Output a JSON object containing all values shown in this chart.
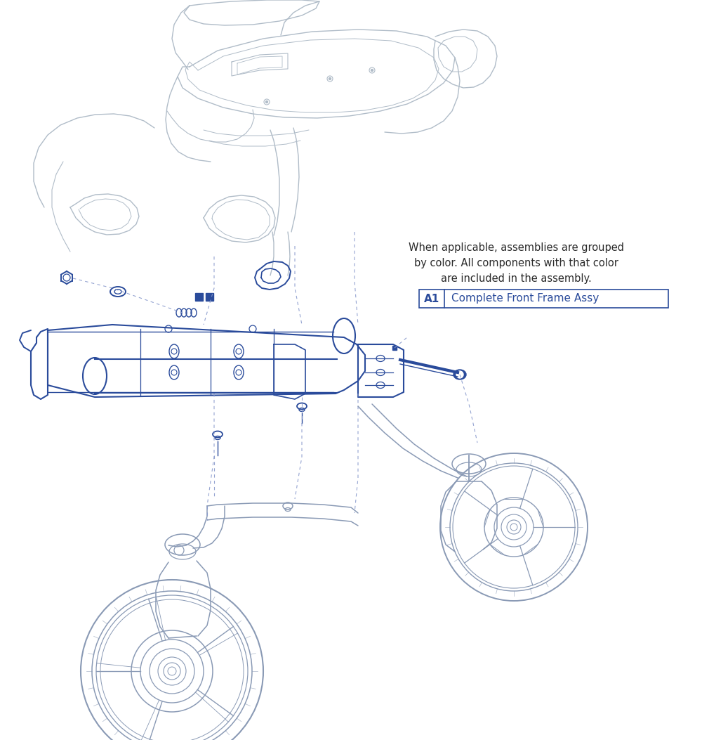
{
  "background_color": "#ffffff",
  "blue_color": "#2a4b9b",
  "gray_color": "#8a9ab0",
  "light_gray": "#b0bcc8",
  "dark_gray": "#6a7a8a",
  "dashed_color": "#8899cc",
  "annotation_text": "When applicable, assemblies are grouped\nby color. All components with that color\nare included in the assembly.",
  "annotation_color": "#2a2a2a",
  "legend_label": "A1",
  "legend_text": "Complete Front Frame Assy",
  "legend_color": "#2a4b9b",
  "legend_border": "#2a4b9b",
  "figsize": [
    10.0,
    10.53
  ],
  "dpi": 100
}
